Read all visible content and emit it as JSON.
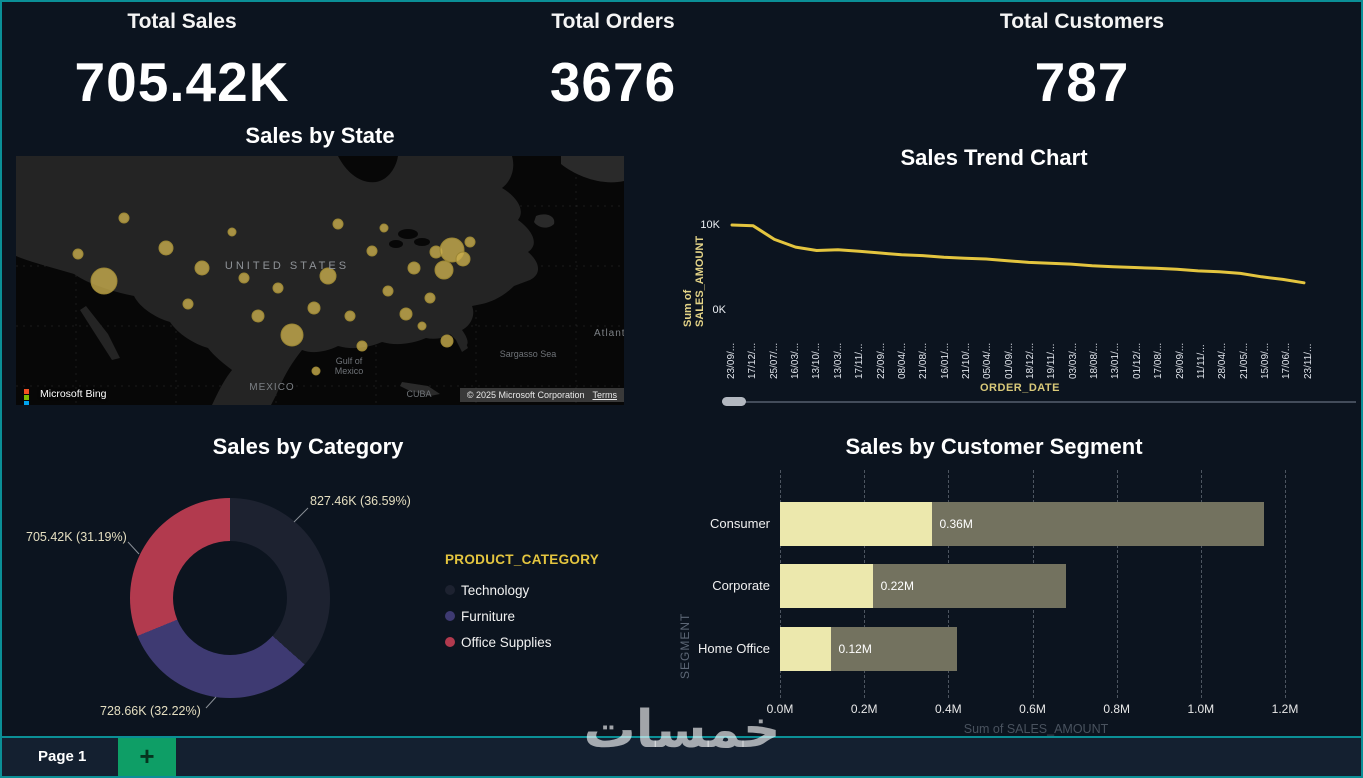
{
  "theme": {
    "background": "#0c141f",
    "border_teal": "#0b8f96",
    "accent_yellow": "#e4c53f"
  },
  "kpis": [
    {
      "title": "Total Sales",
      "value": "705.42K"
    },
    {
      "title": "Total Orders",
      "value": "3676"
    },
    {
      "title": "Total Customers",
      "value": "787"
    }
  ],
  "map_panel": {
    "title": "Sales by State",
    "labels": {
      "country": "UNITED STATES",
      "mexico": "MEXICO",
      "gulf_line1": "Gulf of",
      "gulf_line2": "Mexico",
      "sargasso": "Sargasso Sea",
      "cuba": "CUBA",
      "atlantic_clipped": "Atlant"
    },
    "attribution": {
      "brand": "Microsoft Bing",
      "copyright": "© 2025 Microsoft Corporation",
      "terms": "Terms",
      "logo_colors": [
        "#f25022",
        "#7fba00",
        "#00a4ef",
        "#ffb900"
      ]
    },
    "bubble_color": "#c9ae4e",
    "bubbles": [
      [
        88,
        125,
        13
      ],
      [
        62,
        98,
        5
      ],
      [
        108,
        62,
        5
      ],
      [
        150,
        92,
        7
      ],
      [
        186,
        112,
        7
      ],
      [
        172,
        148,
        5
      ],
      [
        216,
        76,
        4
      ],
      [
        228,
        122,
        5
      ],
      [
        242,
        160,
        6
      ],
      [
        262,
        132,
        5
      ],
      [
        276,
        179,
        11
      ],
      [
        298,
        152,
        6
      ],
      [
        312,
        120,
        8
      ],
      [
        322,
        68,
        5
      ],
      [
        334,
        160,
        5
      ],
      [
        346,
        190,
        5
      ],
      [
        356,
        95,
        5
      ],
      [
        372,
        135,
        5
      ],
      [
        390,
        158,
        6
      ],
      [
        398,
        112,
        6
      ],
      [
        406,
        170,
        4
      ],
      [
        414,
        142,
        5
      ],
      [
        420,
        96,
        6
      ],
      [
        428,
        114,
        9
      ],
      [
        436,
        94,
        12
      ],
      [
        447,
        103,
        7
      ],
      [
        454,
        86,
        5
      ],
      [
        431,
        185,
        6
      ],
      [
        300,
        215,
        4
      ],
      [
        368,
        72,
        4
      ]
    ]
  },
  "trend_panel": {
    "title": "Sales Trend Chart",
    "y_axis_title": "Sum of SALES_AMOUNT",
    "x_axis_title": "ORDER_DATE",
    "chart_data": {
      "type": "line",
      "line_color": "#e4c53f",
      "unit": "K",
      "ylim": [
        0,
        10
      ],
      "y_ticks": [
        "10K",
        "0K"
      ],
      "x": [
        "23/09/...",
        "17/12/...",
        "25/07/...",
        "16/03/...",
        "13/10/...",
        "13/03/...",
        "17/11/...",
        "22/09/...",
        "08/04/...",
        "21/08/...",
        "16/01/...",
        "21/10/...",
        "05/04/...",
        "01/09/...",
        "18/12/...",
        "19/11/...",
        "03/03/...",
        "18/08/...",
        "13/01/...",
        "01/12/...",
        "17/08/...",
        "29/09/...",
        "11/11/...",
        "28/04/...",
        "21/05/...",
        "15/09/...",
        "17/06/...",
        "23/11/..."
      ],
      "values": [
        10,
        9.9,
        8.3,
        7.4,
        7.0,
        7.1,
        6.9,
        6.7,
        6.5,
        6.4,
        6.2,
        6.1,
        6.0,
        5.8,
        5.6,
        5.5,
        5.4,
        5.2,
        5.1,
        5.0,
        4.9,
        4.8,
        4.6,
        4.5,
        4.3,
        3.9,
        3.6,
        3.2
      ]
    }
  },
  "category_panel": {
    "title": "Sales by Category",
    "legend_title": "PRODUCT_CATEGORY",
    "chart_data": {
      "type": "pie",
      "slices": [
        {
          "label": "Technology",
          "value_label": "827.46K (36.59%)",
          "pct": 36.59,
          "color": "#1d2230"
        },
        {
          "label": "Furniture",
          "value_label": "728.66K (32.22%)",
          "pct": 32.22,
          "color": "#3e3a72"
        },
        {
          "label": "Office Supplies",
          "value_label": "705.42K (31.19%)",
          "pct": 31.19,
          "color": "#b23a4e"
        }
      ]
    }
  },
  "segment_panel": {
    "title": "Sales by Customer Segment",
    "y_axis_title": "SEGMENT",
    "x_axis_title": "Sum of SALES_AMOUNT",
    "chart_data": {
      "type": "bar",
      "orientation": "horizontal",
      "categories": [
        "Consumer",
        "Corporate",
        "Home Office"
      ],
      "series": [
        {
          "name": "highlighted",
          "color": "#ece8ad",
          "values": [
            0.36,
            0.22,
            0.12
          ]
        },
        {
          "name": "total",
          "color": "#73725f",
          "values": [
            1.15,
            0.68,
            0.42
          ]
        }
      ],
      "value_labels": [
        "0.36M",
        "0.22M",
        "0.12M"
      ],
      "x_ticks": [
        "0.0M",
        "0.2M",
        "0.4M",
        "0.6M",
        "0.8M",
        "1.0M",
        "1.2M"
      ],
      "xlim": [
        0,
        1.25
      ]
    }
  },
  "footer": {
    "page_tab": "Page 1",
    "add_page_label": "+"
  },
  "watermark": {
    "text": "خمسات"
  }
}
